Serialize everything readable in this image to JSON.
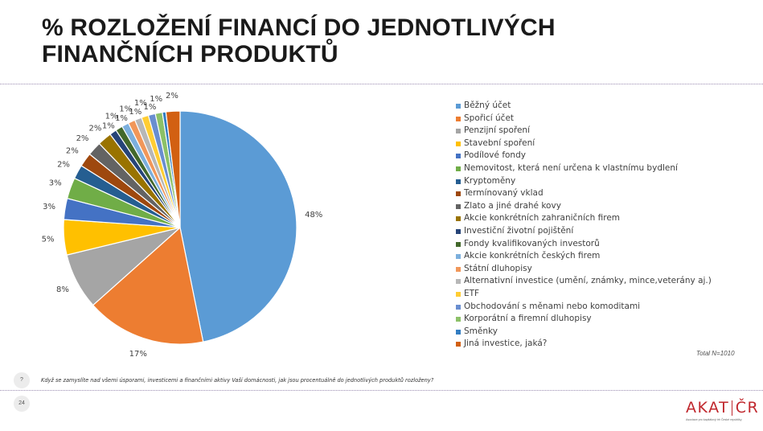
{
  "title": {
    "line1": "% ROZLOŽENÍ FINANCÍ DO JEDNOTLIVÝCH",
    "line2": "FINANČNÍCH PRODUKTŮ"
  },
  "chart_data": {
    "type": "pie",
    "categories": [
      "Běžný účet",
      "Spořicí účet",
      "Penzijní spoření",
      "Stavební spoření",
      "Podílové fondy",
      "Nemovitost, která není určena k vlastnímu bydlení",
      "Kryptoměny",
      "Termínovaný vklad",
      "Zlato a jiné drahé kovy",
      "Akcie konkrétních zahraničních firem",
      "Investiční životní pojištění",
      "Fondy kvalifikovaných investorů",
      "Akcie konkrétních českých firem",
      "Státní dluhopisy",
      "Alternativní investice (umění, známky, mince,veterány aj.)",
      "ETF",
      "Obchodování s měnami nebo komoditami",
      "Korporátní a firemní dluhopisy",
      "Směnky",
      "Jiná investice, jaká?"
    ],
    "values": [
      48,
      17,
      8,
      5,
      3,
      3,
      2,
      2,
      2,
      2,
      1,
      1,
      1,
      1,
      1,
      1,
      1,
      1,
      0.5,
      2
    ],
    "labels": [
      "48%",
      "17%",
      "8%",
      "5%",
      "3%",
      "3%",
      "2%",
      "2%",
      "2%",
      "2%",
      "1%",
      "1%",
      "1%",
      "1%",
      "1%",
      "1%",
      "1%",
      "1%",
      "",
      "2%"
    ],
    "colors": [
      "#5b9bd5",
      "#ed7d31",
      "#a5a5a5",
      "#ffc000",
      "#4472c4",
      "#70ad47",
      "#255e91",
      "#9e480e",
      "#636363",
      "#997300",
      "#264478",
      "#43682b",
      "#7cafdd",
      "#f1975a",
      "#b7b7b7",
      "#ffcd33",
      "#698ed0",
      "#8cc168",
      "#327dc2",
      "#d26012"
    ],
    "legend_position": "right"
  },
  "note": "Total N=1010",
  "question": {
    "badge": "?",
    "text": "Když se zamyslíte nad všemi úsporami, investicemi a finančními aktivy Vaší domácnosti, jak jsou procentuálně do jednotlivých produktů rozloženy?"
  },
  "page_number": "24",
  "logo": {
    "main": "AKAT ČR",
    "sub": "Asociace pro kapitálový trh České republiky",
    "color": "#c0272d"
  }
}
